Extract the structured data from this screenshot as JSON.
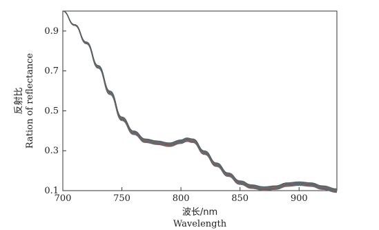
{
  "chart_data": {
    "type": "line",
    "title": "",
    "xlabel": "波长/nm",
    "xlabel_en": "Wavelength",
    "ylabel": "反射比",
    "ylabel_en": "Ration of reflectance",
    "xlim": [
      700,
      932
    ],
    "ylim": [
      0.1,
      1.0
    ],
    "x_ticks": [
      "700",
      "750",
      "800",
      "850",
      "900"
    ],
    "x_tick_values": [
      700,
      750,
      800,
      850,
      900
    ],
    "y_ticks": [
      "0.1",
      "0.3",
      "0.5",
      "0.7",
      "0.9"
    ],
    "y_tick_values": [
      0.1,
      0.3,
      0.5,
      0.7,
      0.9
    ],
    "grid": false,
    "legend": "none",
    "series_colors": [
      "#d6303f",
      "#2a8f3a",
      "#2f5fb8",
      "#e08a1e",
      "#8a2aa8",
      "#1aa6a0",
      "#555555"
    ],
    "base_curve": {
      "x": [
        700,
        710,
        720,
        730,
        740,
        750,
        760,
        770,
        780,
        790,
        800,
        805,
        810,
        820,
        830,
        840,
        850,
        860,
        870,
        880,
        890,
        900,
        910,
        920,
        932
      ],
      "y": [
        1.0,
        0.93,
        0.84,
        0.72,
        0.59,
        0.46,
        0.39,
        0.35,
        0.34,
        0.33,
        0.345,
        0.355,
        0.35,
        0.29,
        0.23,
        0.18,
        0.14,
        0.12,
        0.11,
        0.115,
        0.13,
        0.135,
        0.13,
        0.115,
        0.1
      ]
    }
  }
}
